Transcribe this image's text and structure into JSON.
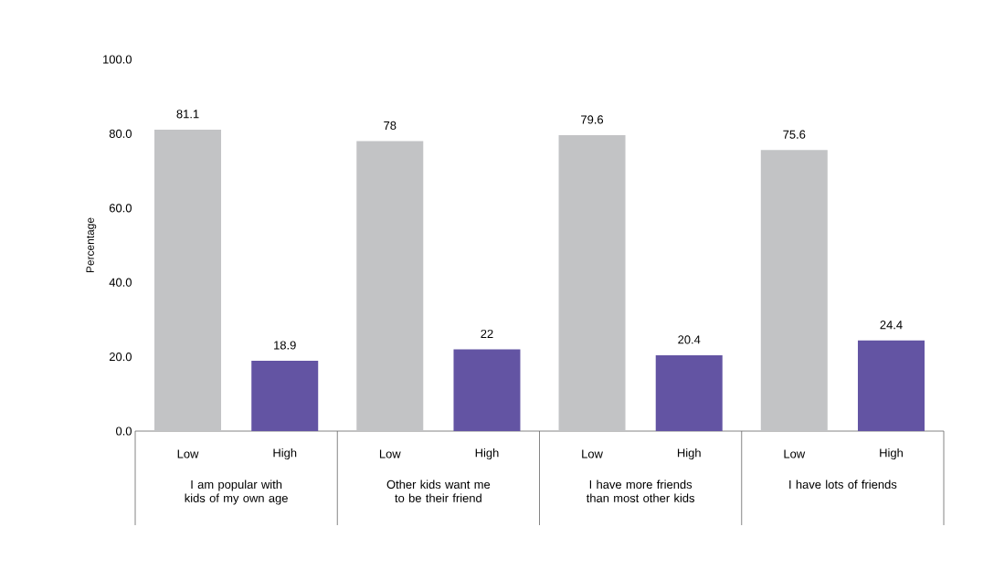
{
  "chart_data": {
    "type": "bar",
    "ylabel": "Percentage",
    "categories": [
      "I am popular with kids of my own age",
      "Other kids want me to be their friend",
      "I have more friends than most other kids",
      "I have lots of friends"
    ],
    "series": [
      {
        "name": "Low",
        "color": "#c2c3c5",
        "values": [
          81.1,
          78,
          79.6,
          75.6
        ]
      },
      {
        "name": "High",
        "color": "#6354a3",
        "values": [
          18.9,
          22,
          20.4,
          24.4
        ]
      }
    ],
    "ylim": [
      0,
      100
    ],
    "yticks": [
      {
        "value": 0,
        "label": "0.0"
      },
      {
        "value": 20,
        "label": "20.0"
      },
      {
        "value": 40,
        "label": "40.0"
      },
      {
        "value": 60,
        "label": "60.0"
      },
      {
        "value": 80,
        "label": "80.0"
      },
      {
        "value": 100,
        "label": "100.0"
      }
    ],
    "data_labels": true
  }
}
